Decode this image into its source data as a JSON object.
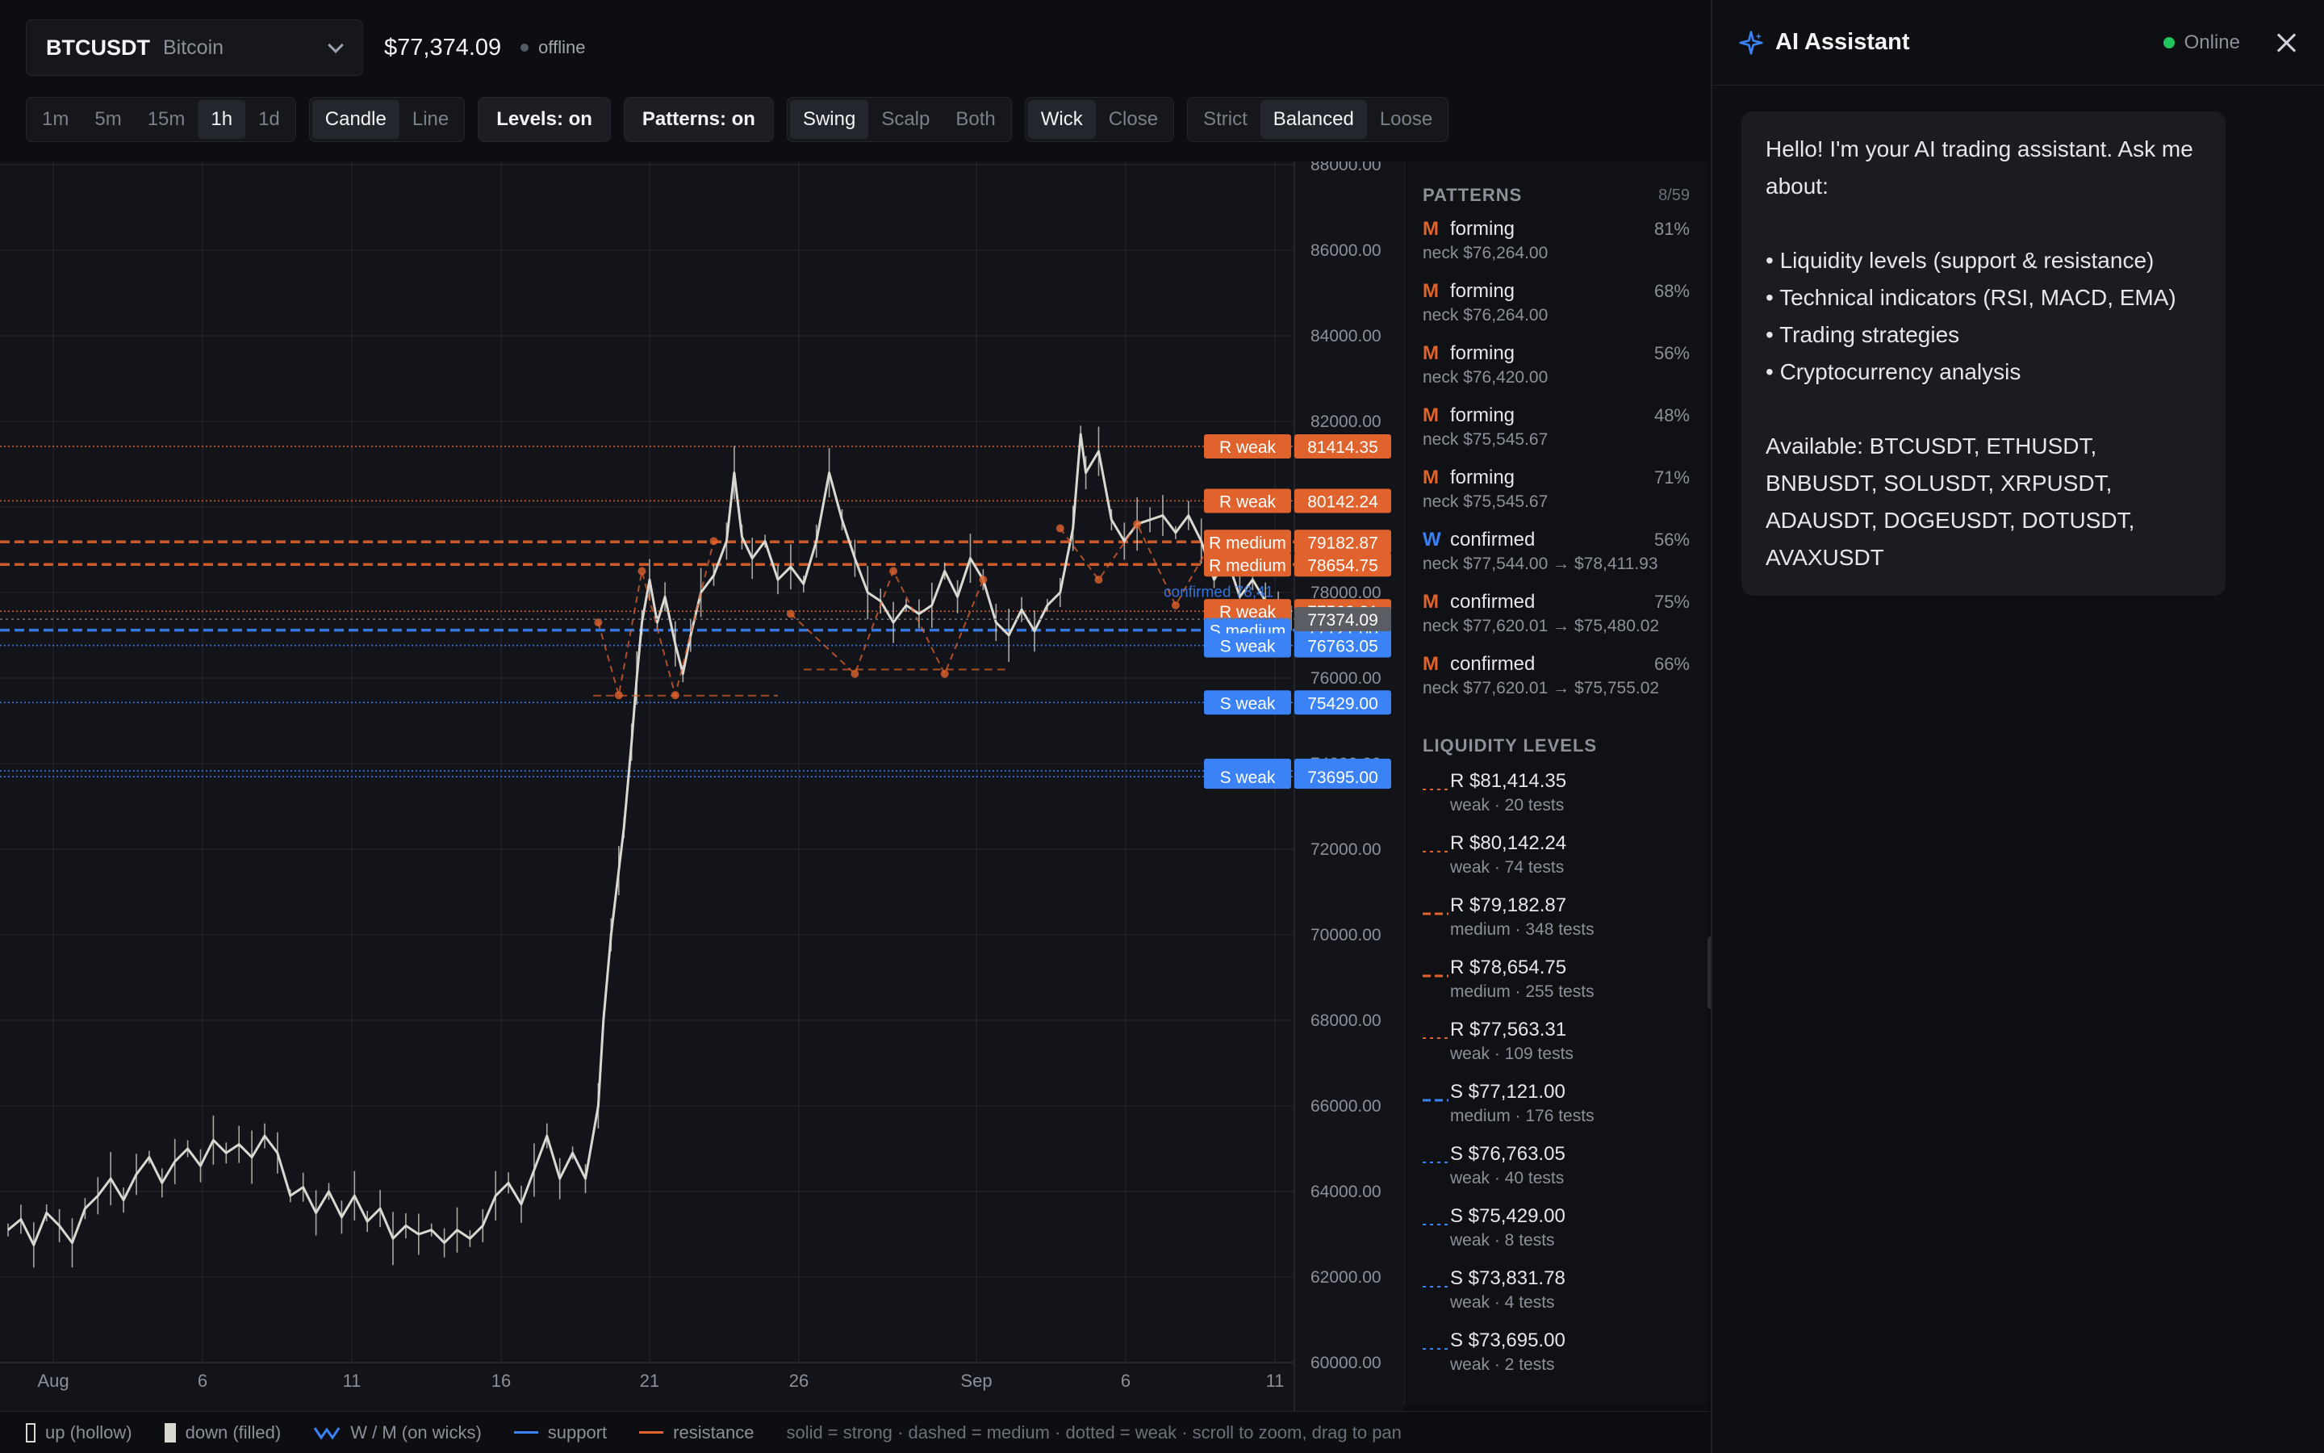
{
  "header": {
    "symbol": "BTCUSDT",
    "symbol_name": "Bitcoin",
    "price": "$77,374.09",
    "connection": "offline"
  },
  "toolbar": {
    "timeframes": [
      {
        "label": "1m",
        "active": false
      },
      {
        "label": "5m",
        "active": false
      },
      {
        "label": "15m",
        "active": false
      },
      {
        "label": "1h",
        "active": true
      },
      {
        "label": "1d",
        "active": false
      }
    ],
    "chart_types": [
      {
        "label": "Candle",
        "active": true
      },
      {
        "label": "Line",
        "active": false
      }
    ],
    "levels_toggle": "Levels: on",
    "patterns_toggle": "Patterns: on",
    "modes": [
      {
        "label": "Swing",
        "active": true
      },
      {
        "label": "Scalp",
        "active": false
      },
      {
        "label": "Both",
        "active": false
      }
    ],
    "source": [
      {
        "label": "Wick",
        "active": true
      },
      {
        "label": "Close",
        "active": false
      }
    ],
    "sensitivity": [
      {
        "label": "Strict",
        "active": false
      },
      {
        "label": "Balanced",
        "active": true
      },
      {
        "label": "Loose",
        "active": false
      }
    ]
  },
  "colors": {
    "resistance": "#e0622c",
    "support": "#3b82f6",
    "candle": "#d9d9d2",
    "current": "#5a5d63"
  },
  "chart_data": {
    "type": "line",
    "y_ticks": [
      "88000.00",
      "86000.00",
      "84000.00",
      "82000.00",
      "80000.00",
      "78000.00",
      "76000.00",
      "74000.00",
      "72000.00",
      "70000.00",
      "68000.00",
      "66000.00",
      "64000.00",
      "62000.00",
      "60000.00"
    ],
    "ylim": [
      60000,
      88000
    ],
    "x_ticks": [
      "Aug",
      "6",
      "11",
      "16",
      "21",
      "26",
      "Sep",
      "6",
      "11"
    ],
    "current_price": "77374.09",
    "price_path": [
      [
        0.0,
        63100
      ],
      [
        0.5,
        63350
      ],
      [
        1.0,
        62750
      ],
      [
        1.5,
        63500
      ],
      [
        2.0,
        63200
      ],
      [
        2.5,
        62800
      ],
      [
        3.0,
        63600
      ],
      [
        3.5,
        63900
      ],
      [
        4.0,
        64300
      ],
      [
        4.5,
        63800
      ],
      [
        5.0,
        64400
      ],
      [
        5.5,
        64800
      ],
      [
        6.0,
        64200
      ],
      [
        6.5,
        64700
      ],
      [
        7.0,
        65000
      ],
      [
        7.5,
        64600
      ],
      [
        8.0,
        65200
      ],
      [
        8.5,
        64900
      ],
      [
        9.0,
        65100
      ],
      [
        9.5,
        64800
      ],
      [
        10.0,
        65300
      ],
      [
        10.5,
        64900
      ],
      [
        11.0,
        63900
      ],
      [
        11.5,
        64100
      ],
      [
        12.0,
        63500
      ],
      [
        12.5,
        64000
      ],
      [
        13.0,
        63400
      ],
      [
        13.5,
        63900
      ],
      [
        14.0,
        63300
      ],
      [
        14.5,
        63600
      ],
      [
        15.0,
        62900
      ],
      [
        15.5,
        63200
      ],
      [
        16.0,
        63000
      ],
      [
        16.5,
        63100
      ],
      [
        17.0,
        62800
      ],
      [
        17.5,
        63100
      ],
      [
        18.0,
        62900
      ],
      [
        18.5,
        63200
      ],
      [
        19.0,
        63900
      ],
      [
        19.5,
        64200
      ],
      [
        20.0,
        63700
      ],
      [
        20.5,
        64500
      ],
      [
        21.0,
        65300
      ],
      [
        21.5,
        64300
      ],
      [
        22.0,
        64900
      ],
      [
        22.5,
        64300
      ],
      [
        23.0,
        66000
      ],
      [
        23.2,
        68000
      ],
      [
        23.5,
        70000
      ],
      [
        23.8,
        71500
      ],
      [
        24.0,
        72500
      ],
      [
        24.3,
        74500
      ],
      [
        24.5,
        76000
      ],
      [
        24.7,
        77300
      ],
      [
        25.0,
        78300
      ],
      [
        25.3,
        77300
      ],
      [
        25.6,
        77900
      ],
      [
        26.0,
        76800
      ],
      [
        26.3,
        76100
      ],
      [
        26.6,
        77000
      ],
      [
        27.0,
        78000
      ],
      [
        27.5,
        78400
      ],
      [
        28.0,
        79200
      ],
      [
        28.3,
        80800
      ],
      [
        28.6,
        79300
      ],
      [
        29.0,
        78800
      ],
      [
        29.5,
        79200
      ],
      [
        30.0,
        78300
      ],
      [
        30.5,
        78600
      ],
      [
        31.0,
        78200
      ],
      [
        31.5,
        79200
      ],
      [
        32.0,
        80800
      ],
      [
        32.5,
        79700
      ],
      [
        33.0,
        78800
      ],
      [
        33.5,
        78000
      ],
      [
        34.0,
        77800
      ],
      [
        34.5,
        77300
      ],
      [
        35.0,
        77700
      ],
      [
        35.5,
        77500
      ],
      [
        36.0,
        77700
      ],
      [
        36.5,
        78500
      ],
      [
        37.0,
        77900
      ],
      [
        37.5,
        78800
      ],
      [
        38.0,
        78300
      ],
      [
        38.5,
        77300
      ],
      [
        39.0,
        77000
      ],
      [
        39.5,
        77600
      ],
      [
        40.0,
        77100
      ],
      [
        40.5,
        77700
      ],
      [
        41.0,
        78000
      ],
      [
        41.5,
        79500
      ],
      [
        41.8,
        81700
      ],
      [
        42.0,
        80800
      ],
      [
        42.5,
        81300
      ],
      [
        43.0,
        79700
      ],
      [
        43.5,
        79200
      ],
      [
        44.0,
        79600
      ],
      [
        44.5,
        79700
      ],
      [
        45.0,
        79800
      ],
      [
        45.5,
        79400
      ],
      [
        46.0,
        79800
      ],
      [
        46.5,
        79200
      ],
      [
        47.0,
        78300
      ],
      [
        47.5,
        78800
      ],
      [
        48.0,
        77900
      ],
      [
        48.5,
        78300
      ],
      [
        49.0,
        77800
      ],
      [
        49.5,
        77400
      ],
      [
        50.0,
        77400
      ]
    ],
    "resistance_levels": [
      {
        "price": 81414.35,
        "label": "R weak",
        "value": "81414.35",
        "style": "dotted"
      },
      {
        "price": 80142.24,
        "label": "R weak",
        "value": "80142.24",
        "style": "dotted"
      },
      {
        "price": 79182.87,
        "label": "R medium",
        "value": "79182.87",
        "style": "dashed"
      },
      {
        "price": 78654.75,
        "label": "R medium",
        "value": "78654.75",
        "style": "dashed"
      },
      {
        "price": 77563.31,
        "label": "R weak",
        "value": "77563.31",
        "style": "dotted"
      }
    ],
    "support_levels": [
      {
        "price": 77121.0,
        "label": "S medium",
        "value": "77121.00",
        "style": "dashed"
      },
      {
        "price": 76763.05,
        "label": "S weak",
        "value": "76763.05",
        "style": "dotted"
      },
      {
        "price": 75429.0,
        "label": "S weak",
        "value": "75429.00",
        "style": "dotted"
      },
      {
        "price": 73831.78,
        "label": "S weak",
        "value": "73831.78",
        "style": "dotted"
      },
      {
        "price": 73695.0,
        "label": "S weak",
        "value": "73695.00",
        "style": "dotted"
      }
    ],
    "annotation": "confirmed 78,41"
  },
  "patterns": {
    "title": "PATTERNS",
    "count": "8/59",
    "items": [
      {
        "type": "M",
        "state": "forming",
        "pct": "81%",
        "neck": "neck $76,264.00"
      },
      {
        "type": "M",
        "state": "forming",
        "pct": "68%",
        "neck": "neck $76,264.00"
      },
      {
        "type": "M",
        "state": "forming",
        "pct": "56%",
        "neck": "neck $76,420.00"
      },
      {
        "type": "M",
        "state": "forming",
        "pct": "48%",
        "neck": "neck $75,545.67"
      },
      {
        "type": "M",
        "state": "forming",
        "pct": "71%",
        "neck": "neck $75,545.67"
      },
      {
        "type": "W",
        "state": "confirmed",
        "pct": "56%",
        "neck": "neck $77,544.00 → $78,411.93"
      },
      {
        "type": "M",
        "state": "confirmed",
        "pct": "75%",
        "neck": "neck $77,620.01 → $75,480.02"
      },
      {
        "type": "M",
        "state": "confirmed",
        "pct": "66%",
        "neck": "neck $77,620.01 → $75,755.02"
      }
    ]
  },
  "liquidity": {
    "title": "LIQUIDITY LEVELS",
    "items": [
      {
        "kind": "R",
        "price": "R $81,414.35",
        "meta": "weak · 20 tests",
        "style": "dotted"
      },
      {
        "kind": "R",
        "price": "R $80,142.24",
        "meta": "weak · 74 tests",
        "style": "dotted"
      },
      {
        "kind": "R",
        "price": "R $79,182.87",
        "meta": "medium · 348 tests",
        "style": "dashed"
      },
      {
        "kind": "R",
        "price": "R $78,654.75",
        "meta": "medium · 255 tests",
        "style": "dashed"
      },
      {
        "kind": "R",
        "price": "R $77,563.31",
        "meta": "weak · 109 tests",
        "style": "dotted"
      },
      {
        "kind": "S",
        "price": "S $77,121.00",
        "meta": "medium · 176 tests",
        "style": "dashed"
      },
      {
        "kind": "S",
        "price": "S $76,763.05",
        "meta": "weak · 40 tests",
        "style": "dotted"
      },
      {
        "kind": "S",
        "price": "S $75,429.00",
        "meta": "weak · 8 tests",
        "style": "dotted"
      },
      {
        "kind": "S",
        "price": "S $73,831.78",
        "meta": "weak · 4 tests",
        "style": "dotted"
      },
      {
        "kind": "S",
        "price": "S $73,695.00",
        "meta": "weak · 2 tests",
        "style": "dotted"
      }
    ]
  },
  "legend": {
    "up": "up (hollow)",
    "down": "down (filled)",
    "wm": "W / M (on wicks)",
    "support": "support",
    "resistance": "resistance",
    "hint": "solid = strong · dashed = medium · dotted = weak · scroll to zoom, drag to pan"
  },
  "ai": {
    "title": "AI Assistant",
    "status": "Online",
    "message": "Hello! I'm your AI trading assistant. Ask me about:\n\n• Liquidity levels (support & resistance)\n• Technical indicators (RSI, MACD, EMA)\n• Trading strategies\n• Cryptocurrency analysis\n\nAvailable: BTCUSDT, ETHUSDT, BNBUSDT, SOLUSDT, XRPUSDT, ADAUSDT, DOGEUSDT, DOTUSDT, AVAXUSDT"
  }
}
